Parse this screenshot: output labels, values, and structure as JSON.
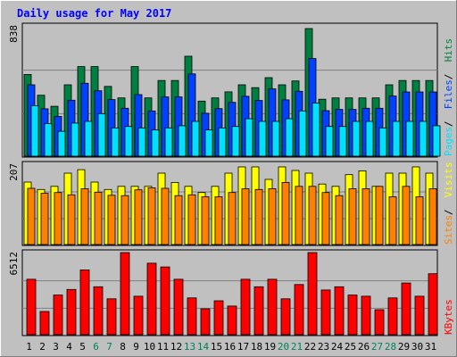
{
  "chart_data": {
    "type": "bar",
    "title": "Daily usage for May 2017",
    "categories": [
      "1",
      "2",
      "3",
      "4",
      "5",
      "6",
      "7",
      "8",
      "9",
      "10",
      "11",
      "12",
      "13",
      "14",
      "15",
      "16",
      "17",
      "18",
      "19",
      "20",
      "21",
      "22",
      "23",
      "24",
      "25",
      "26",
      "27",
      "28",
      "29",
      "30",
      "31"
    ],
    "weekend_days": [
      "6",
      "7",
      "13",
      "14",
      "20",
      "21",
      "27",
      "28"
    ],
    "panels": [
      {
        "id": "pages-files-hits",
        "ymax_label": "838",
        "ylim": [
          0,
          838
        ],
        "grid": true,
        "legend": [
          {
            "label": "Pages",
            "color": "#00e0ff"
          },
          {
            "label": "Files",
            "color": "#0040ff"
          },
          {
            "label": "Hits",
            "color": "#008040"
          }
        ],
        "series": [
          {
            "name": "Hits",
            "color": "#008040",
            "values": [
              526,
              392,
              321,
              459,
              576,
              576,
              449,
              375,
              576,
              375,
              487,
              487,
              643,
              354,
              375,
              414,
              459,
              441,
              505,
              459,
              484,
              821,
              366,
              375,
              375,
              375,
              375,
              459,
              487,
              487,
              487
            ]
          },
          {
            "name": "Files",
            "color": "#0040ff",
            "values": [
              459,
              305,
              256,
              360,
              469,
              421,
              364,
              308,
              396,
              291,
              381,
              381,
              529,
              276,
              306,
              346,
              385,
              358,
              433,
              362,
              417,
              628,
              293,
              301,
              301,
              308,
              308,
              387,
              413,
              413,
              413
            ]
          },
          {
            "name": "Pages",
            "color": "#00e0ff",
            "values": [
              325,
              210,
              160,
              213,
              224,
              274,
              182,
              191,
              182,
              169,
              182,
              196,
              224,
              169,
              182,
              191,
              241,
              224,
              224,
              241,
              291,
              342,
              191,
              191,
              224,
              224,
              182,
              224,
              224,
              224,
              196
            ]
          }
        ]
      },
      {
        "id": "visits-sites",
        "ymax_label": "207",
        "ylim": [
          0,
          207
        ],
        "grid": true,
        "legend": [
          {
            "label": "Sites",
            "color": "#ff8000"
          },
          {
            "label": "Visits",
            "color": "#ffff00"
          }
        ],
        "series": [
          {
            "name": "Visits",
            "color": "#ffff00",
            "values": [
              161,
              142,
              150,
              184,
              193,
              161,
              142,
              150,
              150,
              150,
              184,
              160,
              150,
              134,
              150,
              184,
              200,
              200,
              168,
              200,
              191,
              184,
              156,
              150,
              180,
              190,
              150,
              184,
              184,
              200,
              184
            ]
          },
          {
            "name": "Sites",
            "color": "#ff8000",
            "values": [
              145,
              132,
              134,
              128,
              144,
              135,
              127,
              126,
              141,
              146,
              145,
              126,
              128,
              123,
              123,
              134,
              144,
              142,
              144,
              160,
              150,
              150,
              134,
              126,
              144,
              144,
              150,
              123,
              150,
              123,
              144
            ]
          }
        ]
      },
      {
        "id": "kbytes",
        "ymax_label": "6512",
        "ylim": [
          0,
          6512
        ],
        "grid": true,
        "legend": [
          {
            "label": "KBytes",
            "color": "#ff0000"
          }
        ],
        "series": [
          {
            "name": "KBytes",
            "color": "#ff0000",
            "values": [
              4394,
              1838,
              3141,
              3589,
              5141,
              3798,
              2843,
              6512,
              3051,
              5670,
              5372,
              4394,
              2916,
              2053,
              2693,
              2269,
              4394,
              3798,
              4394,
              2843,
              3977,
              6512,
              3544,
              3798,
              3141,
              3051,
              1982,
              2916,
              4096,
              3051,
              4835
            ]
          }
        ]
      }
    ]
  }
}
